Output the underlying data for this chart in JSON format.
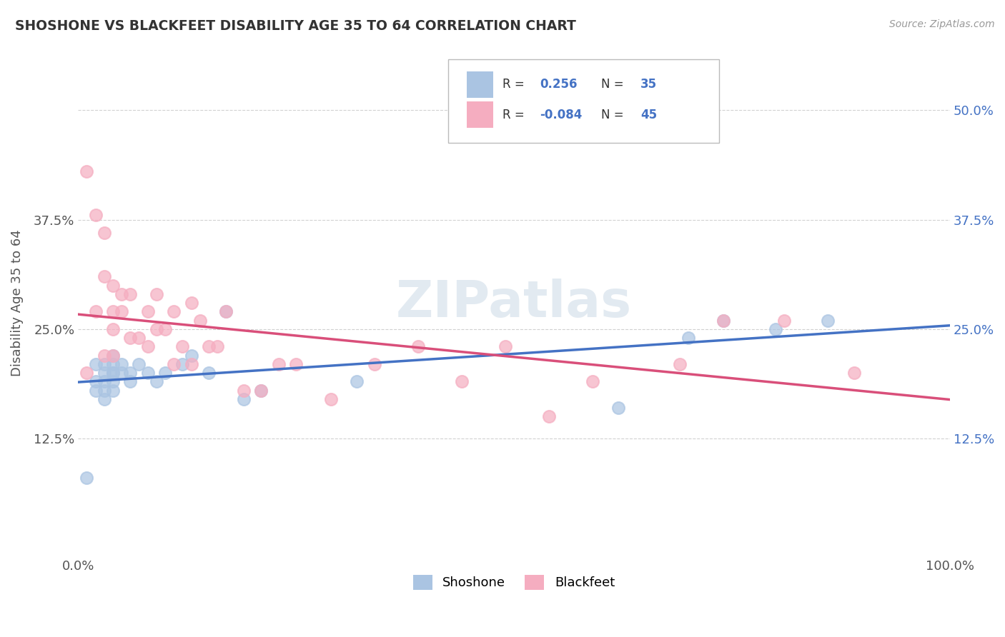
{
  "title": "SHOSHONE VS BLACKFEET DISABILITY AGE 35 TO 64 CORRELATION CHART",
  "source": "Source: ZipAtlas.com",
  "ylabel": "Disability Age 35 to 64",
  "xlim": [
    0.0,
    1.0
  ],
  "ylim": [
    -0.01,
    0.57
  ],
  "yticks": [
    0.125,
    0.25,
    0.375,
    0.5
  ],
  "ytick_labels_left": [
    "12.5%",
    "25.0%",
    "37.5%",
    ""
  ],
  "ytick_labels_right": [
    "12.5%",
    "25.0%",
    "37.5%",
    "50.0%"
  ],
  "xticks": [
    0.0,
    1.0
  ],
  "xtick_labels": [
    "0.0%",
    "100.0%"
  ],
  "shoshone_color": "#aac4e2",
  "blackfeet_color": "#f5adc0",
  "shoshone_line_color": "#4472c4",
  "blackfeet_line_color": "#d94f7a",
  "r_shoshone": 0.256,
  "n_shoshone": 35,
  "r_blackfeet": -0.084,
  "n_blackfeet": 45,
  "watermark": "ZIPatlas",
  "shoshone_x": [
    0.01,
    0.02,
    0.02,
    0.02,
    0.03,
    0.03,
    0.03,
    0.03,
    0.03,
    0.04,
    0.04,
    0.04,
    0.04,
    0.04,
    0.04,
    0.05,
    0.05,
    0.06,
    0.06,
    0.07,
    0.08,
    0.09,
    0.1,
    0.12,
    0.13,
    0.15,
    0.17,
    0.19,
    0.21,
    0.32,
    0.62,
    0.7,
    0.74,
    0.8,
    0.86
  ],
  "shoshone_y": [
    0.08,
    0.19,
    0.21,
    0.18,
    0.21,
    0.2,
    0.19,
    0.18,
    0.17,
    0.21,
    0.2,
    0.2,
    0.19,
    0.18,
    0.22,
    0.21,
    0.2,
    0.2,
    0.19,
    0.21,
    0.2,
    0.19,
    0.2,
    0.21,
    0.22,
    0.2,
    0.27,
    0.17,
    0.18,
    0.19,
    0.16,
    0.24,
    0.26,
    0.25,
    0.26
  ],
  "blackfeet_x": [
    0.01,
    0.01,
    0.02,
    0.02,
    0.03,
    0.03,
    0.03,
    0.04,
    0.04,
    0.04,
    0.04,
    0.05,
    0.05,
    0.06,
    0.06,
    0.07,
    0.08,
    0.08,
    0.09,
    0.09,
    0.1,
    0.11,
    0.11,
    0.12,
    0.13,
    0.13,
    0.14,
    0.15,
    0.16,
    0.17,
    0.19,
    0.21,
    0.23,
    0.25,
    0.29,
    0.34,
    0.39,
    0.44,
    0.49,
    0.54,
    0.59,
    0.69,
    0.74,
    0.81,
    0.89
  ],
  "blackfeet_y": [
    0.43,
    0.2,
    0.38,
    0.27,
    0.36,
    0.31,
    0.22,
    0.3,
    0.27,
    0.25,
    0.22,
    0.29,
    0.27,
    0.24,
    0.29,
    0.24,
    0.27,
    0.23,
    0.25,
    0.29,
    0.25,
    0.27,
    0.21,
    0.23,
    0.28,
    0.21,
    0.26,
    0.23,
    0.23,
    0.27,
    0.18,
    0.18,
    0.21,
    0.21,
    0.17,
    0.21,
    0.23,
    0.19,
    0.23,
    0.15,
    0.19,
    0.21,
    0.26,
    0.26,
    0.2
  ],
  "background_color": "#ffffff",
  "grid_color": "#cccccc",
  "title_color": "#333333"
}
